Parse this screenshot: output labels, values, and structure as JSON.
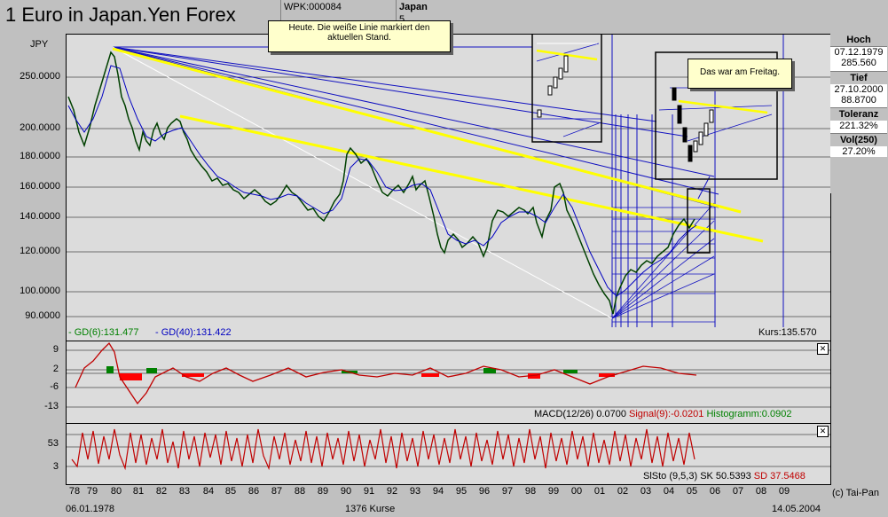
{
  "title": "1 Euro in Japan.Yen Forex",
  "header": {
    "wpk": "WPK:000084",
    "country": "Japan",
    "country_sub": "5"
  },
  "main_chart": {
    "currency": "JPY",
    "y_ticks": [
      "250.0000",
      "200.0000",
      "180.0000",
      "160.0000",
      "140.0000",
      "120.0000",
      "100.0000",
      "90.0000"
    ],
    "gd6": "- GD(6):131.477",
    "gd40": "- GD(40):131.422",
    "kurs": "Kurs:135.570",
    "note1": "Heute. Die weiße Linie markiert den aktuellen Stand.",
    "note2": "Das war am Freitag."
  },
  "stats": {
    "hoch_label": "Hoch",
    "hoch_date": "07.12.1979",
    "hoch_value": "285.560",
    "tief_label": "Tief",
    "tief_date": "27.10.2000",
    "tief_value": "88.8700",
    "toleranz_label": "Toleranz",
    "toleranz_value": "221.32%",
    "vol_label": "Vol(250)",
    "vol_value": "27.20%"
  },
  "macd": {
    "y_ticks": [
      "9",
      "2",
      "-6",
      "-13"
    ],
    "label": "MACD(12/26) 0.0700",
    "signal": "Signal(9):-0.0201",
    "histogram": "Histogramm:0.0902"
  },
  "sto": {
    "y_ticks": [
      "53",
      "3"
    ],
    "label": "SlSto (9,5,3) SK 50.5393",
    "sd": "SD 37.5468"
  },
  "x_axis": {
    "labels": [
      "78",
      "79",
      "80",
      "81",
      "82",
      "83",
      "84",
      "85",
      "86",
      "87",
      "88",
      "89",
      "90",
      "91",
      "92",
      "93",
      "94",
      "95",
      "96",
      "97",
      "98",
      "99",
      "00",
      "01",
      "02",
      "03",
      "04",
      "05",
      "06",
      "07",
      "08",
      "09"
    ],
    "start_date": "06.01.1978",
    "count": "1376 Kurse",
    "end_date": "14.05.2004",
    "copyright": "(c) Tai-Pan"
  },
  "colors": {
    "price": "#004000",
    "ma": "#0000c0",
    "trend": "#ffff00",
    "macd": "#c00000",
    "hist_pos": "#008000",
    "hist_neg": "#ff0000"
  }
}
